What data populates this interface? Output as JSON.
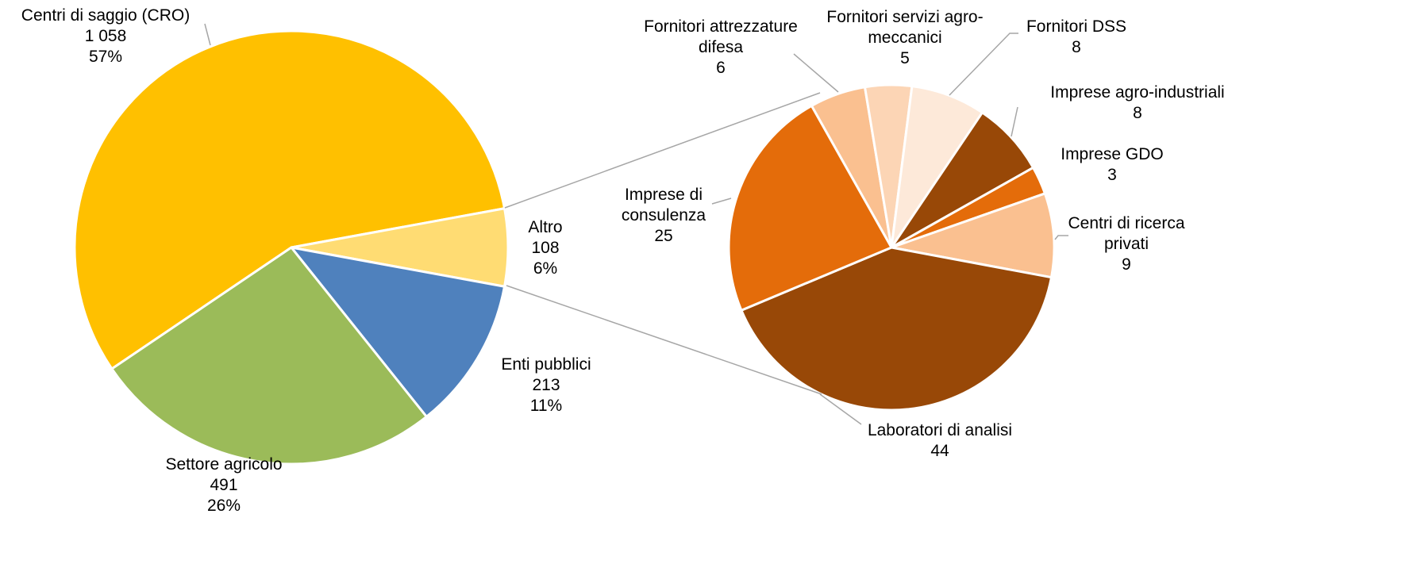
{
  "chart_data": [
    {
      "type": "pie",
      "categories": [
        "Centri di saggio (CRO)",
        "Altro",
        "Enti pubblici",
        "Settore agricolo"
      ],
      "values": [
        1058,
        108,
        213,
        491
      ],
      "value_labels": [
        "1 058",
        "108",
        "213",
        "491"
      ],
      "percents": [
        57,
        6,
        11,
        26
      ],
      "percent_labels": [
        "57%",
        "6%",
        "11%",
        "26%"
      ],
      "colors": [
        "#FFC000",
        "#FFDC73",
        "#4F81BD",
        "#9BBB59"
      ]
    },
    {
      "type": "pie",
      "categories": [
        "Fornitori attrezzature difesa",
        "Fornitori servizi agro-meccanici",
        "Fornitori DSS",
        "Imprese agro-industriali",
        "Imprese GDO",
        "Centri di ricerca privati",
        "Laboratori di analisi",
        "Imprese di consulenza"
      ],
      "values": [
        6,
        5,
        8,
        8,
        3,
        9,
        44,
        25
      ],
      "colors": [
        "#FAC090",
        "#FCD5B5",
        "#FDE9D9",
        "#984807",
        "#E46C0A",
        "#FAC090",
        "#984807",
        "#E46C0A"
      ]
    }
  ]
}
